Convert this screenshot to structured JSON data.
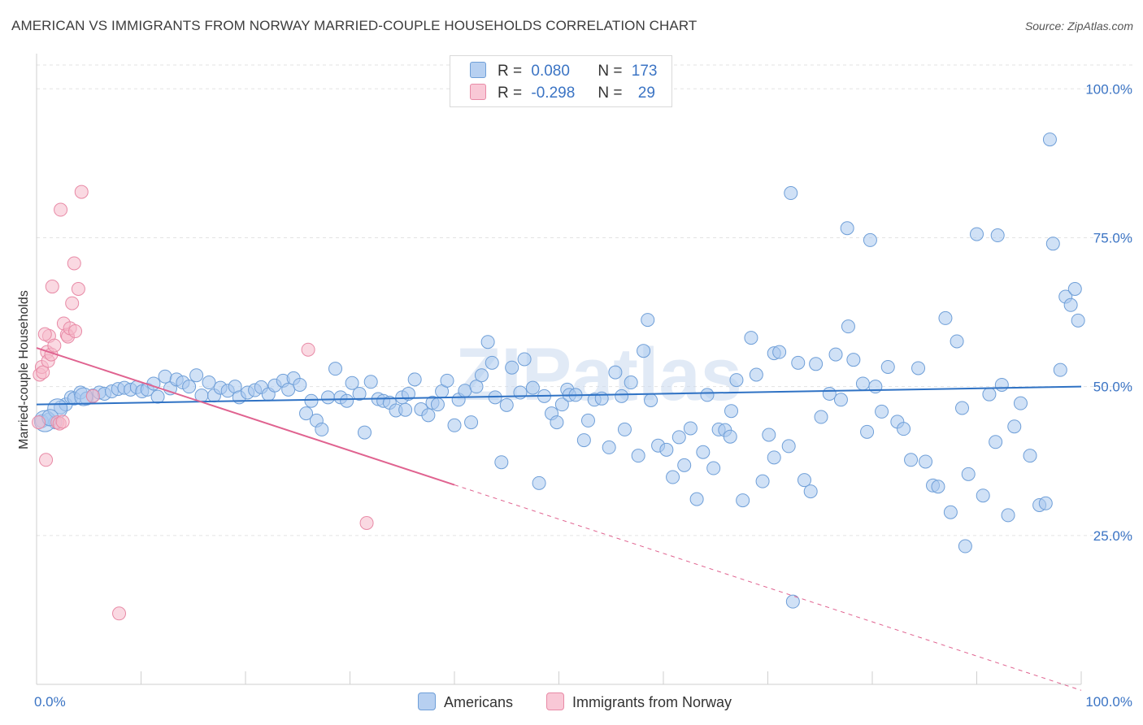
{
  "title": "AMERICAN VS IMMIGRANTS FROM NORWAY MARRIED-COUPLE HOUSEHOLDS CORRELATION CHART",
  "source": "Source: ZipAtlas.com",
  "watermark": "ZIPatlas",
  "legend": {
    "row1": {
      "r_label": "R =",
      "r_value": "0.080",
      "n_label": "N =",
      "n_value": "173"
    },
    "row2": {
      "r_label": "R =",
      "r_value": "-0.298",
      "n_label": "N =",
      "n_value": "29"
    }
  },
  "bottom_legend": {
    "americans": "Americans",
    "norway": "Immigrants from Norway"
  },
  "colors": {
    "blue_fill": "#aac8ee",
    "blue_stroke": "#6f9fd8",
    "blue_line": "#2f72c4",
    "pink_fill": "#f5b9cb",
    "pink_stroke": "#e88aa6",
    "pink_line": "#e06390"
  },
  "chart_data": {
    "type": "scatter",
    "xlabel": "",
    "ylabel": "Married-couple Households",
    "xlim": [
      0,
      100
    ],
    "ylim": [
      0,
      104
    ],
    "x_tick_labels": [
      "0.0%",
      "100.0%"
    ],
    "y_tick_labels": [
      "25.0%",
      "50.0%",
      "75.0%",
      "100.0%"
    ],
    "y_ticks": [
      25,
      50,
      75,
      100
    ],
    "grid": true,
    "series": [
      {
        "name": "Americans",
        "trend": {
          "x": [
            0,
            100
          ],
          "y": [
            47.0,
            50.0
          ]
        },
        "points": [
          [
            0.5,
            44.2
          ],
          [
            1.2,
            44.5
          ],
          [
            1.8,
            44.0
          ],
          [
            2.3,
            46.5
          ],
          [
            2.8,
            47.0
          ],
          [
            3.3,
            48.2
          ],
          [
            3.6,
            48.0
          ],
          [
            4.2,
            49.0
          ],
          [
            4.8,
            48.0
          ],
          [
            5.4,
            48.5
          ],
          [
            6.0,
            49.0
          ],
          [
            6.5,
            48.8
          ],
          [
            7.2,
            49.2
          ],
          [
            7.8,
            49.6
          ],
          [
            8.4,
            49.8
          ],
          [
            9.0,
            49.5
          ],
          [
            9.6,
            49.9
          ],
          [
            10.1,
            49.2
          ],
          [
            10.6,
            49.5
          ],
          [
            11.2,
            50.5
          ],
          [
            11.6,
            48.3
          ],
          [
            12.3,
            51.7
          ],
          [
            12.8,
            49.7
          ],
          [
            13.4,
            51.2
          ],
          [
            14.0,
            50.7
          ],
          [
            14.6,
            50.0
          ],
          [
            15.3,
            51.9
          ],
          [
            15.8,
            48.5
          ],
          [
            16.5,
            50.7
          ],
          [
            17.0,
            48.5
          ],
          [
            17.6,
            49.8
          ],
          [
            18.3,
            49.3
          ],
          [
            19.0,
            50.0
          ],
          [
            19.4,
            48.2
          ],
          [
            20.2,
            49.0
          ],
          [
            20.9,
            49.4
          ],
          [
            21.5,
            49.9
          ],
          [
            22.2,
            48.7
          ],
          [
            22.8,
            50.2
          ],
          [
            23.6,
            51.0
          ],
          [
            24.1,
            49.5
          ],
          [
            24.6,
            51.4
          ],
          [
            25.2,
            50.3
          ],
          [
            25.8,
            45.5
          ],
          [
            26.3,
            47.6
          ],
          [
            26.8,
            44.3
          ],
          [
            27.3,
            42.8
          ],
          [
            27.9,
            48.2
          ],
          [
            28.6,
            53.0
          ],
          [
            29.1,
            48.2
          ],
          [
            29.7,
            47.6
          ],
          [
            30.2,
            50.6
          ],
          [
            30.9,
            48.8
          ],
          [
            31.4,
            42.3
          ],
          [
            32.0,
            50.8
          ],
          [
            32.7,
            47.9
          ],
          [
            33.2,
            47.6
          ],
          [
            33.8,
            47.3
          ],
          [
            34.4,
            46.0
          ],
          [
            35.0,
            48.2
          ],
          [
            35.3,
            46.1
          ],
          [
            35.6,
            48.8
          ],
          [
            36.2,
            51.2
          ],
          [
            36.8,
            46.2
          ],
          [
            37.5,
            45.2
          ],
          [
            37.9,
            47.3
          ],
          [
            38.4,
            47.0
          ],
          [
            38.8,
            49.2
          ],
          [
            39.3,
            51.0
          ],
          [
            40.0,
            43.5
          ],
          [
            40.4,
            47.8
          ],
          [
            41.0,
            49.3
          ],
          [
            41.6,
            44.0
          ],
          [
            42.1,
            50.0
          ],
          [
            42.6,
            51.9
          ],
          [
            43.2,
            57.5
          ],
          [
            43.6,
            54.0
          ],
          [
            43.9,
            48.2
          ],
          [
            44.5,
            37.3
          ],
          [
            45.0,
            46.9
          ],
          [
            45.5,
            53.2
          ],
          [
            46.3,
            49.0
          ],
          [
            46.7,
            54.6
          ],
          [
            47.5,
            49.8
          ],
          [
            48.1,
            33.8
          ],
          [
            48.6,
            48.4
          ],
          [
            49.3,
            45.5
          ],
          [
            49.8,
            44.0
          ],
          [
            50.3,
            47.0
          ],
          [
            50.8,
            49.5
          ],
          [
            51.0,
            48.6
          ],
          [
            51.6,
            48.6
          ],
          [
            52.4,
            41.0
          ],
          [
            52.8,
            44.3
          ],
          [
            53.4,
            47.8
          ],
          [
            54.1,
            48.0
          ],
          [
            54.8,
            39.8
          ],
          [
            55.4,
            52.4
          ],
          [
            56.0,
            48.4
          ],
          [
            56.3,
            42.8
          ],
          [
            56.9,
            50.7
          ],
          [
            57.6,
            38.4
          ],
          [
            58.1,
            56.0
          ],
          [
            58.8,
            47.7
          ],
          [
            59.5,
            40.1
          ],
          [
            60.3,
            39.4
          ],
          [
            60.9,
            34.8
          ],
          [
            61.5,
            41.5
          ],
          [
            62.0,
            36.8
          ],
          [
            62.6,
            43.0
          ],
          [
            63.2,
            31.1
          ],
          [
            63.8,
            39.0
          ],
          [
            64.2,
            48.6
          ],
          [
            64.8,
            36.3
          ],
          [
            65.3,
            42.8
          ],
          [
            65.9,
            42.7
          ],
          [
            66.4,
            41.6
          ],
          [
            67.0,
            51.1
          ],
          [
            67.6,
            30.9
          ],
          [
            68.4,
            58.2
          ],
          [
            68.9,
            52.0
          ],
          [
            69.5,
            34.1
          ],
          [
            70.1,
            41.9
          ],
          [
            70.6,
            55.6
          ],
          [
            71.1,
            55.8
          ],
          [
            72.0,
            40.0
          ],
          [
            72.9,
            54.0
          ],
          [
            73.5,
            34.3
          ],
          [
            74.1,
            32.4
          ],
          [
            74.6,
            53.8
          ],
          [
            75.1,
            44.9
          ],
          [
            75.9,
            48.8
          ],
          [
            76.5,
            55.4
          ],
          [
            77.0,
            47.8
          ],
          [
            77.7,
            60.1
          ],
          [
            78.2,
            54.5
          ],
          [
            79.1,
            50.5
          ],
          [
            79.5,
            42.4
          ],
          [
            80.3,
            50.0
          ],
          [
            80.9,
            45.8
          ],
          [
            81.5,
            53.3
          ],
          [
            82.4,
            44.1
          ],
          [
            83.0,
            42.9
          ],
          [
            83.7,
            37.7
          ],
          [
            84.4,
            53.1
          ],
          [
            85.1,
            37.4
          ],
          [
            85.8,
            33.4
          ],
          [
            86.3,
            33.2
          ],
          [
            87.0,
            61.5
          ],
          [
            87.5,
            28.9
          ],
          [
            88.1,
            57.6
          ],
          [
            88.6,
            46.4
          ],
          [
            89.2,
            35.3
          ],
          [
            90.0,
            75.6
          ],
          [
            90.6,
            31.7
          ],
          [
            91.2,
            48.7
          ],
          [
            91.8,
            40.7
          ],
          [
            92.4,
            50.3
          ],
          [
            93.0,
            28.4
          ],
          [
            93.6,
            43.3
          ],
          [
            94.2,
            47.2
          ],
          [
            95.1,
            38.4
          ],
          [
            96.0,
            30.1
          ],
          [
            96.6,
            30.4
          ],
          [
            97.3,
            74.0
          ],
          [
            98.0,
            52.8
          ],
          [
            98.5,
            65.1
          ],
          [
            99.0,
            63.7
          ],
          [
            99.4,
            66.4
          ],
          [
            99.7,
            61.1
          ],
          [
            72.2,
            82.5
          ],
          [
            77.6,
            76.6
          ],
          [
            79.8,
            74.6
          ],
          [
            92.0,
            75.4
          ],
          [
            97.0,
            91.5
          ],
          [
            88.9,
            23.2
          ],
          [
            72.4,
            13.9
          ],
          [
            70.6,
            38.1
          ],
          [
            66.5,
            45.9
          ],
          [
            58.5,
            61.2
          ]
        ]
      },
      {
        "name": "Immigrants from Norway",
        "trend": {
          "x": [
            0,
            40
          ],
          "y": [
            56.5,
            33.5
          ]
        },
        "trend_extended": {
          "x": [
            40,
            100
          ],
          "y": [
            33.5,
            -1.0
          ]
        },
        "points": [
          [
            0.2,
            44.0
          ],
          [
            0.3,
            52.0
          ],
          [
            0.5,
            53.3
          ],
          [
            0.6,
            52.4
          ],
          [
            0.9,
            37.7
          ],
          [
            1.0,
            55.8
          ],
          [
            1.1,
            54.3
          ],
          [
            1.2,
            58.5
          ],
          [
            1.4,
            55.4
          ],
          [
            1.5,
            66.8
          ],
          [
            1.7,
            56.9
          ],
          [
            2.0,
            44.0
          ],
          [
            2.2,
            43.8
          ],
          [
            2.3,
            79.7
          ],
          [
            2.6,
            60.6
          ],
          [
            2.9,
            58.7
          ],
          [
            3.0,
            58.4
          ],
          [
            3.2,
            59.8
          ],
          [
            3.4,
            64.0
          ],
          [
            3.6,
            70.7
          ],
          [
            3.7,
            59.3
          ],
          [
            4.0,
            66.4
          ],
          [
            4.3,
            82.7
          ],
          [
            5.4,
            48.4
          ],
          [
            7.9,
            11.9
          ],
          [
            26.0,
            56.2
          ],
          [
            31.6,
            27.1
          ],
          [
            0.8,
            58.8
          ],
          [
            2.5,
            44.1
          ]
        ]
      }
    ]
  }
}
